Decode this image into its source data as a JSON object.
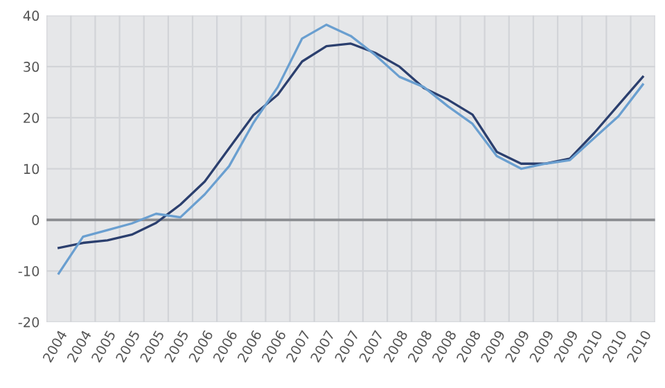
{
  "chart_data": {
    "type": "line",
    "categories": [
      "2004",
      "2004",
      "2005",
      "2005",
      "2005",
      "2005",
      "2006",
      "2006",
      "2006",
      "2006",
      "2007",
      "2007",
      "2007",
      "2007",
      "2008",
      "2008",
      "2008",
      "2008",
      "2009",
      "2009",
      "2009",
      "2009",
      "2010",
      "2010",
      "2010"
    ],
    "series": [
      {
        "color": "#2b3f6e",
        "values": [
          -5.5,
          -4.5,
          -4,
          -2.9,
          -0.6,
          3,
          7.5,
          14,
          20.5,
          24.5,
          31,
          34,
          34.5,
          32.7,
          30,
          25.8,
          23.5,
          20.6,
          13.3,
          11,
          11,
          12,
          17,
          22.5,
          28
        ]
      },
      {
        "color": "#6a9fd0",
        "values": [
          -10.5,
          -3.3,
          -2,
          -0.7,
          1.2,
          0.5,
          5,
          10.5,
          19,
          26,
          35.5,
          38.2,
          36,
          32.3,
          28,
          26,
          22.2,
          18.8,
          12.5,
          10,
          11,
          11.7,
          16,
          20.3,
          26.5
        ]
      }
    ],
    "ylim": [
      -20,
      40
    ],
    "yticks": [
      -20,
      -10,
      0,
      10,
      20,
      30,
      40
    ],
    "grid": true,
    "marker": "none",
    "line_style": "solid",
    "legend": false,
    "ref_lines": [
      {
        "axis": "y",
        "value": 0,
        "color": "#8a8c90"
      }
    ]
  }
}
